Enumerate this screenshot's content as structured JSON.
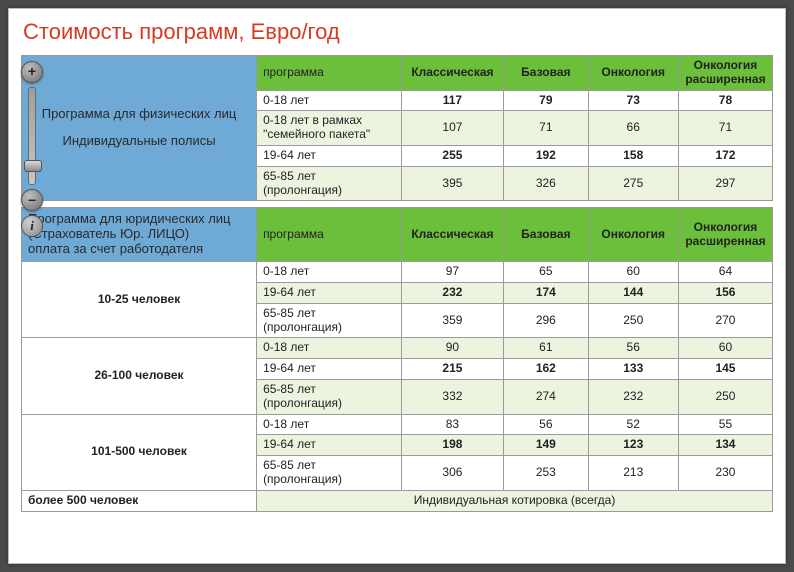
{
  "title": "Стоимость программ, Евро/год",
  "zoom": {
    "plus": "+",
    "minus": "–",
    "info": "i"
  },
  "headers": {
    "program": "программа",
    "cols": [
      "Классическая",
      "Базовая",
      "Онкология",
      "Онкология расширенная"
    ]
  },
  "table1": {
    "left_line1": "Программа для физических лиц",
    "left_line2": "Индивидуальные полисы",
    "rows": [
      {
        "label": "0-18 лет",
        "vals": [
          "117",
          "79",
          "73",
          "78"
        ],
        "bold": true
      },
      {
        "label": "0-18 лет в рамках \"семейного пакета\"",
        "vals": [
          "107",
          "71",
          "66",
          "71"
        ],
        "bold": false,
        "alt": true
      },
      {
        "label": "19-64 лет",
        "vals": [
          "255",
          "192",
          "158",
          "172"
        ],
        "bold": true
      },
      {
        "label": "65-85 лет (пролонгация)",
        "vals": [
          "395",
          "326",
          "275",
          "297"
        ],
        "bold": false,
        "alt": true
      }
    ]
  },
  "table2": {
    "left_title_l1": "Программа для юридических лиц",
    "left_title_l2": "(Страхователь Юр. ЛИЦО)",
    "left_title_l3": "оплата за счет работодателя",
    "groups": [
      {
        "name": "10-25 человек",
        "rows": [
          {
            "label": "0-18 лет",
            "vals": [
              "97",
              "65",
              "60",
              "64"
            ],
            "bold": false
          },
          {
            "label": "19-64 лет",
            "vals": [
              "232",
              "174",
              "144",
              "156"
            ],
            "bold": true,
            "alt": true
          },
          {
            "label": "65-85 лет (пролонгация)",
            "vals": [
              "359",
              "296",
              "250",
              "270"
            ],
            "bold": false
          }
        ]
      },
      {
        "name": "26-100 человек",
        "rows": [
          {
            "label": "0-18 лет",
            "vals": [
              "90",
              "61",
              "56",
              "60"
            ],
            "bold": false,
            "alt": true
          },
          {
            "label": "19-64 лет",
            "vals": [
              "215",
              "162",
              "133",
              "145"
            ],
            "bold": true
          },
          {
            "label": "65-85 лет (пролонгация)",
            "vals": [
              "332",
              "274",
              "232",
              "250"
            ],
            "bold": false,
            "alt": true
          }
        ]
      },
      {
        "name": "101-500 человек",
        "rows": [
          {
            "label": "0-18 лет",
            "vals": [
              "83",
              "56",
              "52",
              "55"
            ],
            "bold": false
          },
          {
            "label": "19-64 лет",
            "vals": [
              "198",
              "149",
              "123",
              "134"
            ],
            "bold": true,
            "alt": true
          },
          {
            "label": "65-85 лет (пролонгация)",
            "vals": [
              "306",
              "253",
              "213",
              "230"
            ],
            "bold": false
          }
        ]
      }
    ],
    "footer_left": "более 500 человек",
    "footer_right": "Индивидуальная котировка (всегда)"
  },
  "colors": {
    "title": "#d63a23",
    "header_blue": "#6fa9d6",
    "header_green": "#6bbf3a",
    "alt_row": "#ecf4e0",
    "border": "#9a9a9a"
  }
}
